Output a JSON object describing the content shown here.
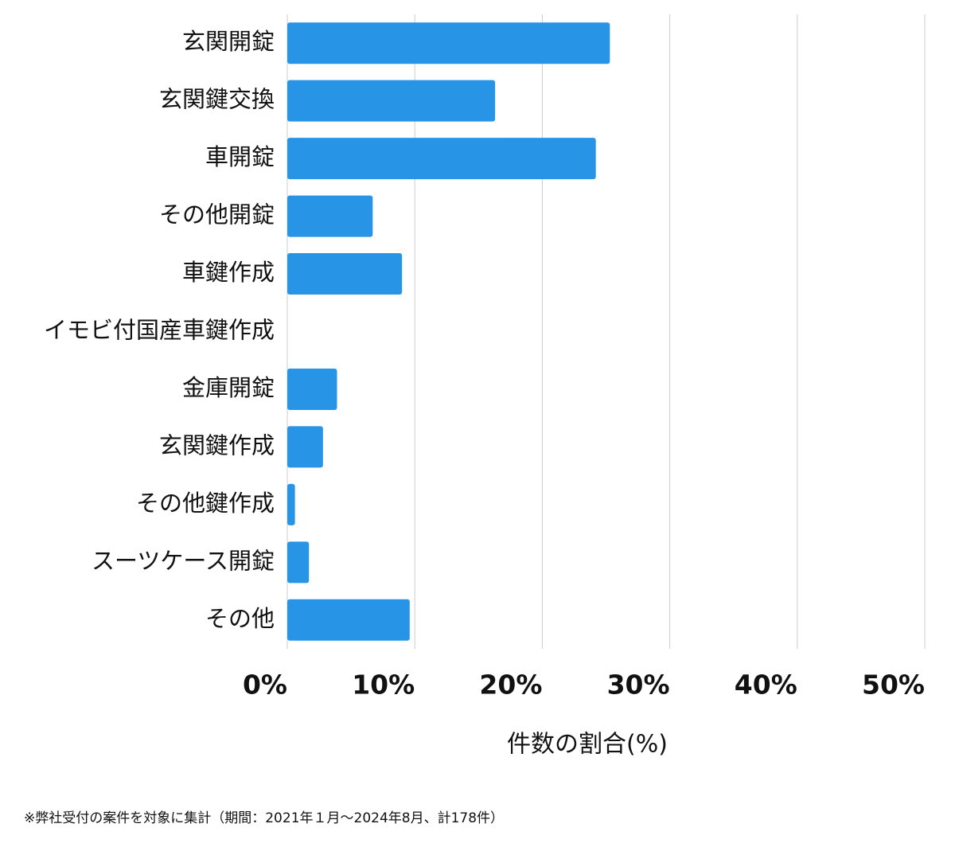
{
  "chart_data": {
    "type": "bar",
    "orientation": "horizontal",
    "categories": [
      "玄関開錠",
      "玄関鍵交換",
      "車開錠",
      "その他開錠",
      "車鍵作成",
      "イモビ付国産車鍵作成",
      "金庫開錠",
      "玄関鍵作成",
      "その他鍵作成",
      "スーツケース開錠",
      "その他"
    ],
    "values": [
      25.3,
      16.3,
      24.2,
      6.7,
      9.0,
      0,
      3.9,
      2.8,
      0.6,
      1.7,
      9.6
    ],
    "color": "#2894e6",
    "xlim": [
      0,
      50
    ],
    "xticks": [
      {
        "value": 0,
        "label": "0%"
      },
      {
        "value": 10,
        "label": "10%"
      },
      {
        "value": 20,
        "label": "20%"
      },
      {
        "value": 30,
        "label": "30%"
      },
      {
        "value": 40,
        "label": "40%"
      },
      {
        "value": 50,
        "label": "50%"
      }
    ],
    "xlabel": "件数の割合(%)",
    "grid": true,
    "footnote": "※弊社受付の案件を対象に集計（期間：2021年１月〜2024年8月、計178件）"
  }
}
